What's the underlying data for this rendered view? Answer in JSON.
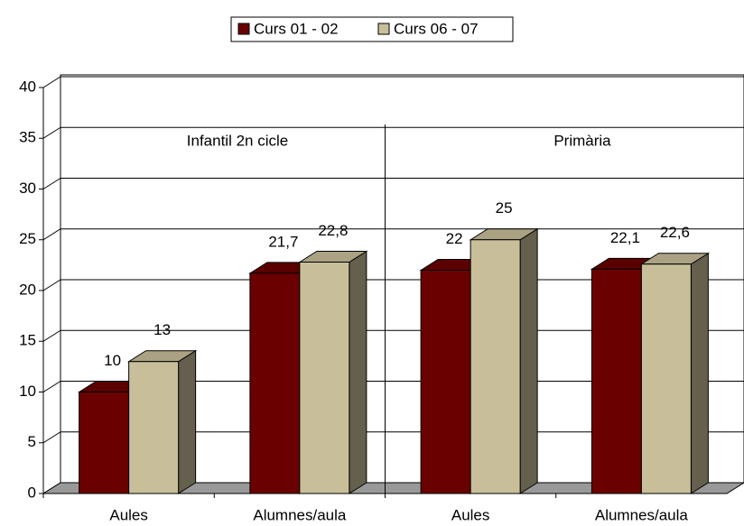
{
  "chart_data": {
    "type": "bar3d",
    "categories": [
      "Aules",
      "Alumnes/aula",
      "Aules",
      "Alumnes/aula"
    ],
    "series": [
      {
        "name": "Curs 01 - 02",
        "color": "#6b0000",
        "values": [
          10,
          21.7,
          22,
          22.1
        ],
        "value_labels": [
          "10",
          "21,7",
          "22",
          "22,1"
        ]
      },
      {
        "name": "Curs 06 - 07",
        "color": "#c8bf9a",
        "values": [
          13,
          22.8,
          25,
          22.6
        ],
        "value_labels": [
          "13",
          "22,8",
          "25",
          "22,6"
        ]
      }
    ],
    "annotations": [
      "Infantil 2n cicle",
      "Primària"
    ],
    "ylim": [
      0,
      40
    ],
    "yticks": [
      0,
      5,
      10,
      15,
      20,
      25,
      30,
      35,
      40
    ],
    "grid": true,
    "legend": "top"
  }
}
